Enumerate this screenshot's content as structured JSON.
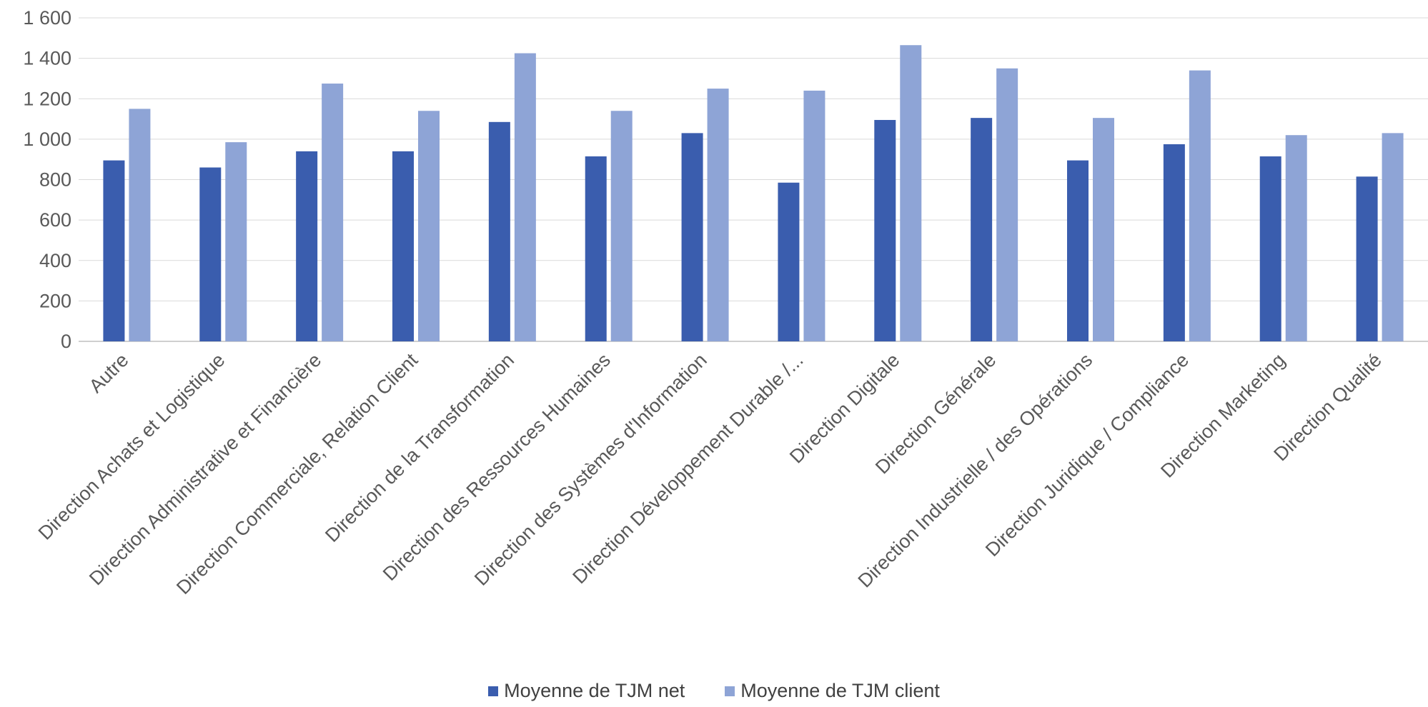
{
  "chart_data": {
    "type": "bar",
    "categories": [
      "Autre",
      "Direction Achats et Logistique",
      "Direction Administrative et Financière",
      "Direction Commerciale, Relation Client",
      "Direction de la Transformation",
      "Direction des Ressources Humaines",
      "Direction des Systèmes d'Information",
      "Direction Développement Durable /...",
      "Direction Digitale",
      "Direction Générale",
      "Direction Industrielle / des Opérations",
      "Direction Juridique / Compliance",
      "Direction Marketing",
      "Direction Qualité"
    ],
    "series": [
      {
        "name": "Moyenne de TJM net",
        "color": "#3A5DAE",
        "values": [
          895,
          860,
          940,
          940,
          1085,
          915,
          1030,
          785,
          1095,
          1105,
          895,
          975,
          915,
          815
        ]
      },
      {
        "name": "Moyenne de TJM client",
        "color": "#8EA4D6",
        "values": [
          1150,
          985,
          1275,
          1140,
          1425,
          1140,
          1250,
          1240,
          1465,
          1350,
          1105,
          1340,
          1020,
          1030
        ]
      }
    ],
    "ylim": [
      0,
      1600
    ],
    "yticks": [
      0,
      200,
      400,
      600,
      800,
      1000,
      1200,
      1400,
      1600
    ],
    "ytick_labels": [
      "0",
      "200",
      "400",
      "600",
      "800",
      "1 000",
      "1 200",
      "1 400",
      "1 600"
    ],
    "grid": true,
    "legend_position": "bottom",
    "title": "",
    "xlabel": "",
    "ylabel": ""
  }
}
